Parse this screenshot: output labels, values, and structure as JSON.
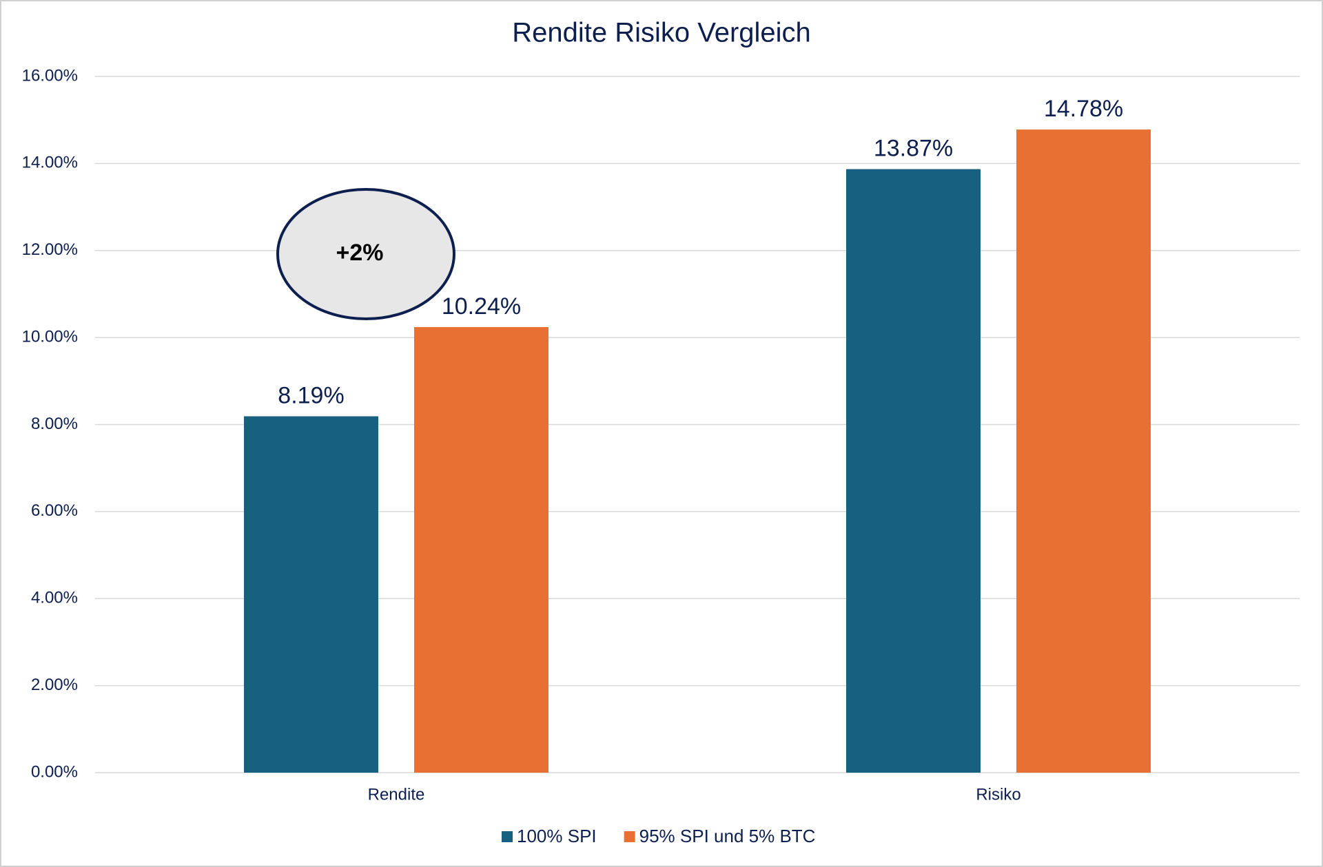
{
  "chart_data": {
    "type": "bar",
    "title": "Rendite Risiko Vergleich",
    "categories": [
      "Rendite",
      "Risiko"
    ],
    "series": [
      {
        "name": "100% SPI",
        "color": "#17607f",
        "values": [
          8.19,
          13.87
        ],
        "value_labels": [
          "8.19%",
          "13.87%"
        ]
      },
      {
        "name": "95% SPI und 5% BTC",
        "color": "#e87033",
        "values": [
          10.24,
          14.78
        ],
        "value_labels": [
          "10.24%",
          "14.78%"
        ]
      }
    ],
    "ylim": [
      0,
      16
    ],
    "yticks": [
      {
        "value": 0,
        "label": "0.00%"
      },
      {
        "value": 2,
        "label": "2.00%"
      },
      {
        "value": 4,
        "label": "4.00%"
      },
      {
        "value": 6,
        "label": "6.00%"
      },
      {
        "value": 8,
        "label": "8.00%"
      },
      {
        "value": 10,
        "label": "10.00%"
      },
      {
        "value": 12,
        "label": "12.00%"
      },
      {
        "value": 14,
        "label": "14.00%"
      },
      {
        "value": 16,
        "label": "16.00%"
      }
    ],
    "grid": true,
    "legend": "bottom",
    "annotation": "+2%"
  }
}
